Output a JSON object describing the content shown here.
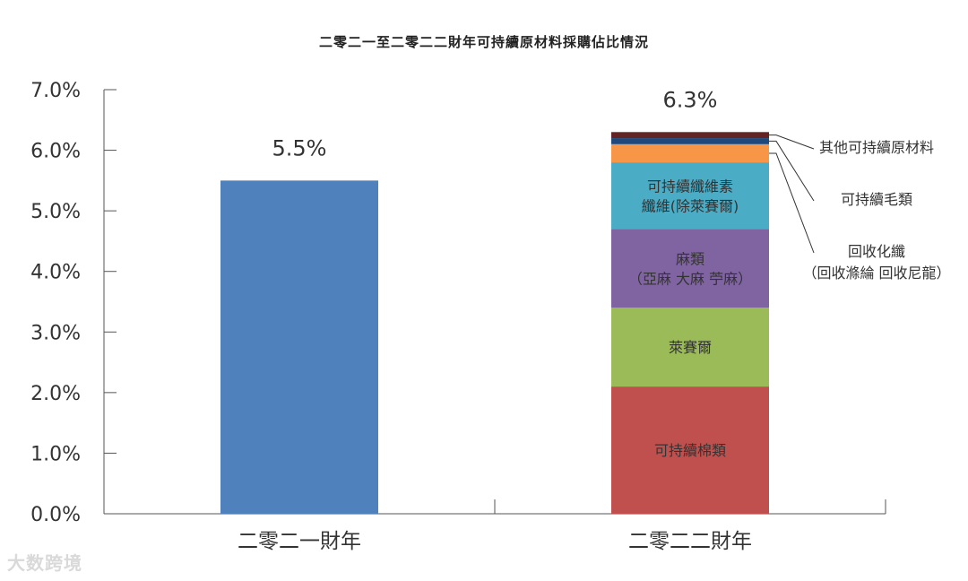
{
  "chart_data": {
    "type": "bar",
    "stacked": true,
    "title": "二零二一至二零二二財年可持續原材料採購佔比情況",
    "ylim": [
      0,
      7
    ],
    "yticks": [
      "0.0%",
      "1.0%",
      "2.0%",
      "3.0%",
      "4.0%",
      "5.0%",
      "6.0%",
      "7.0%"
    ],
    "categories": [
      "二零二一財年",
      "二零二二財年"
    ],
    "totals": [
      "5.5%",
      "6.3%"
    ],
    "series": [
      {
        "name": "可持續棉類",
        "color": "#c0504d",
        "values": [
          0,
          2.1
        ],
        "label_lines": [
          "可持續棉類"
        ]
      },
      {
        "name": "萊賽爾",
        "color": "#9bbb59",
        "values": [
          0,
          1.3
        ],
        "label_lines": [
          "萊賽爾"
        ]
      },
      {
        "name": "麻類（亞麻 大麻 苧麻）",
        "color": "#8064a2",
        "values": [
          0,
          1.3
        ],
        "label_lines": [
          "麻類",
          "（亞麻 大麻 苧麻）"
        ]
      },
      {
        "name": "可持續纖維素纖維（除萊賽爾）",
        "color": "#4bacc6",
        "values": [
          0,
          1.1
        ],
        "label_lines": [
          "可持續纖維素",
          "纖維(除萊賽爾)"
        ]
      },
      {
        "name": "回收化纖（回收滌綸 回收尼龍）",
        "color": "#f79646",
        "values": [
          0,
          0.3
        ],
        "label_lines": []
      },
      {
        "name": "可持續毛類",
        "color": "#1f497d",
        "values": [
          0,
          0.1
        ],
        "label_lines": []
      },
      {
        "name": "其他可持續原材料",
        "color": "#632523",
        "values": [
          0,
          0.1
        ],
        "label_lines": []
      },
      {
        "name": "二零二一財年",
        "color": "#4f81bd",
        "values": [
          5.5,
          0
        ],
        "label_lines": []
      }
    ],
    "annotations": [
      {
        "series_index": 6,
        "lines": [
          "其他可持續原材料"
        ]
      },
      {
        "series_index": 5,
        "lines": [
          "可持續毛類"
        ]
      },
      {
        "series_index": 4,
        "lines": [
          "回收化纖",
          "（回收滌綸 回收尼龍）"
        ]
      }
    ],
    "grid": false,
    "legend": "none"
  },
  "watermark": "大数跨境"
}
